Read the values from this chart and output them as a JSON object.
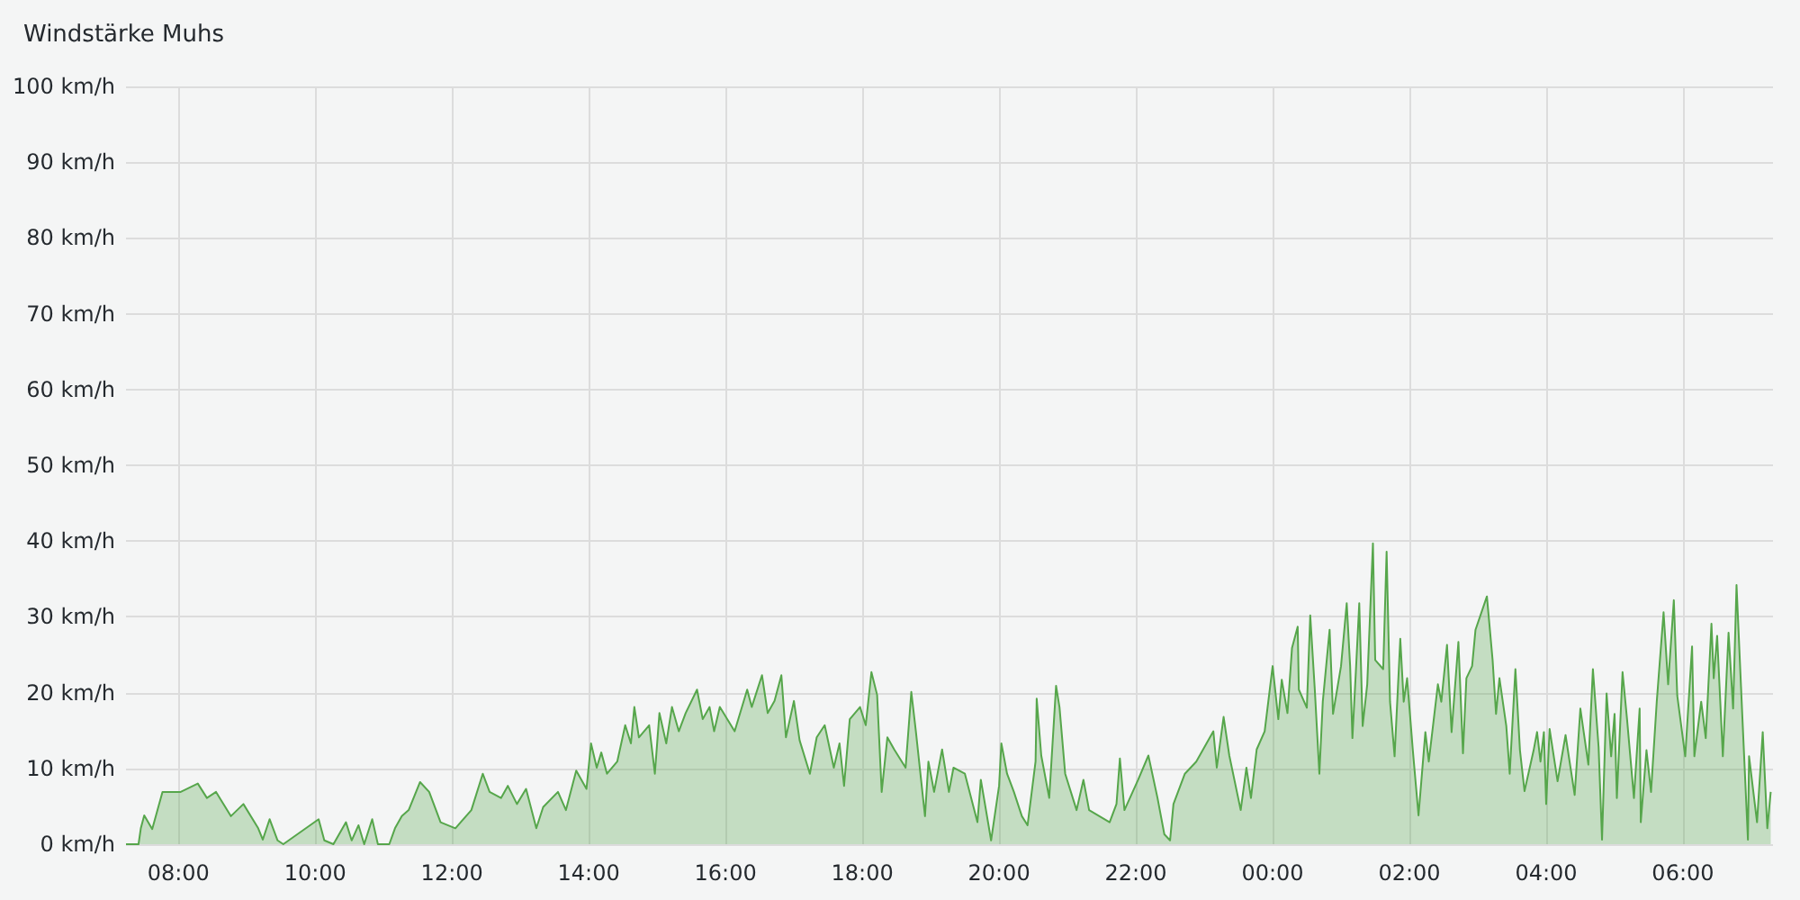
{
  "chart_data": {
    "type": "area",
    "title": "Windstärke Muhs",
    "grid": true,
    "marker": "none",
    "line_style": "solid",
    "xlim": [
      "2000-01-01T07:14",
      "2000-01-02T07:19"
    ],
    "xticks": [
      {
        "value": "2000-01-01T08:00",
        "label": "08:00"
      },
      {
        "value": "2000-01-01T10:00",
        "label": "10:00"
      },
      {
        "value": "2000-01-01T12:00",
        "label": "12:00"
      },
      {
        "value": "2000-01-01T14:00",
        "label": "14:00"
      },
      {
        "value": "2000-01-01T16:00",
        "label": "16:00"
      },
      {
        "value": "2000-01-01T18:00",
        "label": "18:00"
      },
      {
        "value": "2000-01-01T20:00",
        "label": "20:00"
      },
      {
        "value": "2000-01-01T22:00",
        "label": "22:00"
      },
      {
        "value": "2000-01-02T00:00",
        "label": "00:00"
      },
      {
        "value": "2000-01-02T02:00",
        "label": "02:00"
      },
      {
        "value": "2000-01-02T04:00",
        "label": "04:00"
      },
      {
        "value": "2000-01-02T06:00",
        "label": "06:00"
      }
    ],
    "ylim": [
      0,
      100
    ],
    "yticks": [
      {
        "value": 0,
        "label": "0 km/h"
      },
      {
        "value": 10,
        "label": "10 km/h"
      },
      {
        "value": 20,
        "label": "20 km/h"
      },
      {
        "value": 30,
        "label": "30 km/h"
      },
      {
        "value": 40,
        "label": "40 km/h"
      },
      {
        "value": 50,
        "label": "50 km/h"
      },
      {
        "value": 60,
        "label": "60 km/h"
      },
      {
        "value": 70,
        "label": "70 km/h"
      },
      {
        "value": 80,
        "label": "80 km/h"
      },
      {
        "value": 90,
        "label": "90 km/h"
      },
      {
        "value": 100,
        "label": "100 km/h"
      }
    ],
    "series": [
      {
        "color": "#56a64b",
        "x": [
          "2000-01-01T07:14",
          "2000-01-01T07:25",
          "2000-01-01T07:27",
          "2000-01-01T07:30",
          "2000-01-01T07:37",
          "2000-01-01T07:46",
          "2000-01-01T08:02",
          "2000-01-01T08:17",
          "2000-01-01T08:25",
          "2000-01-01T08:33",
          "2000-01-01T08:46",
          "2000-01-01T08:57",
          "2000-01-01T09:10",
          "2000-01-01T09:14",
          "2000-01-01T09:20",
          "2000-01-01T09:27",
          "2000-01-01T09:32",
          "2000-01-01T10:03",
          "2000-01-01T10:08",
          "2000-01-01T10:16",
          "2000-01-01T10:27",
          "2000-01-01T10:32",
          "2000-01-01T10:38",
          "2000-01-01T10:43",
          "2000-01-01T10:50",
          "2000-01-01T10:55",
          "2000-01-01T11:05",
          "2000-01-01T11:10",
          "2000-01-01T11:16",
          "2000-01-01T11:22",
          "2000-01-01T11:32",
          "2000-01-01T11:40",
          "2000-01-01T11:50",
          "2000-01-01T12:03",
          "2000-01-01T12:17",
          "2000-01-01T12:27",
          "2000-01-01T12:33",
          "2000-01-01T12:43",
          "2000-01-01T12:49",
          "2000-01-01T12:57",
          "2000-01-01T13:05",
          "2000-01-01T13:14",
          "2000-01-01T13:20",
          "2000-01-01T13:33",
          "2000-01-01T13:40",
          "2000-01-01T13:49",
          "2000-01-01T13:58",
          "2000-01-01T14:02",
          "2000-01-01T14:07",
          "2000-01-01T14:11",
          "2000-01-01T14:16",
          "2000-01-01T14:25",
          "2000-01-01T14:32",
          "2000-01-01T14:37",
          "2000-01-01T14:40",
          "2000-01-01T14:44",
          "2000-01-01T14:53",
          "2000-01-01T14:58",
          "2000-01-01T15:02",
          "2000-01-01T15:08",
          "2000-01-01T15:13",
          "2000-01-01T15:19",
          "2000-01-01T15:25",
          "2000-01-01T15:35",
          "2000-01-01T15:40",
          "2000-01-01T15:46",
          "2000-01-01T15:50",
          "2000-01-01T15:55",
          "2000-01-01T16:08",
          "2000-01-01T16:19",
          "2000-01-01T16:23",
          "2000-01-01T16:32",
          "2000-01-01T16:37",
          "2000-01-01T16:43",
          "2000-01-01T16:49",
          "2000-01-01T16:53",
          "2000-01-01T17:00",
          "2000-01-01T17:05",
          "2000-01-01T17:14",
          "2000-01-01T17:20",
          "2000-01-01T17:27",
          "2000-01-01T17:35",
          "2000-01-01T17:40",
          "2000-01-01T17:44",
          "2000-01-01T17:49",
          "2000-01-01T17:58",
          "2000-01-01T18:03",
          "2000-01-01T18:08",
          "2000-01-01T18:13",
          "2000-01-01T18:17",
          "2000-01-01T18:22",
          "2000-01-01T18:28",
          "2000-01-01T18:38",
          "2000-01-01T18:43",
          "2000-01-01T18:47",
          "2000-01-01T18:55",
          "2000-01-01T18:58",
          "2000-01-01T19:03",
          "2000-01-01T19:10",
          "2000-01-01T19:16",
          "2000-01-01T19:20",
          "2000-01-01T19:30",
          "2000-01-01T19:41",
          "2000-01-01T19:44",
          "2000-01-01T19:53",
          "2000-01-01T20:00",
          "2000-01-01T20:02",
          "2000-01-01T20:07",
          "2000-01-01T20:13",
          "2000-01-01T20:20",
          "2000-01-01T20:25",
          "2000-01-01T20:32",
          "2000-01-01T20:33",
          "2000-01-01T20:37",
          "2000-01-01T20:44",
          "2000-01-01T20:50",
          "2000-01-01T20:53",
          "2000-01-01T20:58",
          "2000-01-01T21:08",
          "2000-01-01T21:14",
          "2000-01-01T21:19",
          "2000-01-01T21:37",
          "2000-01-01T21:43",
          "2000-01-01T21:46",
          "2000-01-01T21:50",
          "2000-01-01T22:02",
          "2000-01-01T22:11",
          "2000-01-01T22:19",
          "2000-01-01T22:25",
          "2000-01-01T22:30",
          "2000-01-01T22:33",
          "2000-01-01T22:43",
          "2000-01-01T22:53",
          "2000-01-01T23:02",
          "2000-01-01T23:08",
          "2000-01-01T23:11",
          "2000-01-01T23:17",
          "2000-01-01T23:22",
          "2000-01-01T23:32",
          "2000-01-01T23:37",
          "2000-01-01T23:41",
          "2000-01-01T23:46",
          "2000-01-01T23:53",
          "2000-01-02T00:00",
          "2000-01-02T00:05",
          "2000-01-02T00:08",
          "2000-01-02T00:13",
          "2000-01-02T00:17",
          "2000-01-02T00:22",
          "2000-01-02T00:23",
          "2000-01-02T00:30",
          "2000-01-02T00:33",
          "2000-01-02T00:37",
          "2000-01-02T00:41",
          "2000-01-02T00:44",
          "2000-01-02T00:50",
          "2000-01-02T00:53",
          "2000-01-02T01:00",
          "2000-01-02T01:05",
          "2000-01-02T01:08",
          "2000-01-02T01:10",
          "2000-01-02T01:13",
          "2000-01-02T01:16",
          "2000-01-02T01:19",
          "2000-01-02T01:23",
          "2000-01-02T01:28",
          "2000-01-02T01:30",
          "2000-01-02T01:37",
          "2000-01-02T01:40",
          "2000-01-02T01:43",
          "2000-01-02T01:47",
          "2000-01-02T01:52",
          "2000-01-02T01:55",
          "2000-01-02T01:58",
          "2000-01-02T02:03",
          "2000-01-02T02:08",
          "2000-01-02T02:11",
          "2000-01-02T02:14",
          "2000-01-02T02:17",
          "2000-01-02T02:25",
          "2000-01-02T02:28",
          "2000-01-02T02:33",
          "2000-01-02T02:37",
          "2000-01-02T02:43",
          "2000-01-02T02:47",
          "2000-01-02T02:50",
          "2000-01-02T02:55",
          "2000-01-02T02:58",
          "2000-01-02T03:08",
          "2000-01-02T03:13",
          "2000-01-02T03:16",
          "2000-01-02T03:19",
          "2000-01-02T03:25",
          "2000-01-02T03:28",
          "2000-01-02T03:33",
          "2000-01-02T03:37",
          "2000-01-02T03:41",
          "2000-01-02T03:49",
          "2000-01-02T03:52",
          "2000-01-02T03:55",
          "2000-01-02T03:58",
          "2000-01-02T04:00",
          "2000-01-02T04:03",
          "2000-01-02T04:10",
          "2000-01-02T04:17",
          "2000-01-02T04:25",
          "2000-01-02T04:30",
          "2000-01-02T04:37",
          "2000-01-02T04:41",
          "2000-01-02T04:46",
          "2000-01-02T04:49",
          "2000-01-02T04:53",
          "2000-01-02T04:57",
          "2000-01-02T05:00",
          "2000-01-02T05:02",
          "2000-01-02T05:07",
          "2000-01-02T05:11",
          "2000-01-02T05:17",
          "2000-01-02T05:22",
          "2000-01-02T05:23",
          "2000-01-02T05:28",
          "2000-01-02T05:32",
          "2000-01-02T05:37",
          "2000-01-02T05:43",
          "2000-01-02T05:47",
          "2000-01-02T05:52",
          "2000-01-02T05:55",
          "2000-01-02T06:02",
          "2000-01-02T06:08",
          "2000-01-02T06:10",
          "2000-01-02T06:16",
          "2000-01-02T06:20",
          "2000-01-02T06:25",
          "2000-01-02T06:27",
          "2000-01-02T06:30",
          "2000-01-02T06:35",
          "2000-01-02T06:40",
          "2000-01-02T06:44",
          "2000-01-02T06:47",
          "2000-01-02T06:52",
          "2000-01-02T06:57",
          "2000-01-02T06:58",
          "2000-01-02T07:05",
          "2000-01-02T07:10",
          "2000-01-02T07:14",
          "2000-01-02T07:17"
        ],
        "values": [
          0,
          0,
          2.1,
          3.8,
          2.0,
          6.9,
          6.9,
          8.0,
          6.1,
          6.9,
          3.7,
          5.3,
          2.1,
          0.6,
          3.3,
          0.5,
          0,
          3.3,
          0.5,
          0,
          2.9,
          0.5,
          2.5,
          0,
          3.3,
          0,
          0,
          2.1,
          3.7,
          4.5,
          8.2,
          6.9,
          2.9,
          2.1,
          4.5,
          9.3,
          6.9,
          6.1,
          7.7,
          5.3,
          7.3,
          2.1,
          4.9,
          6.9,
          4.5,
          9.7,
          7.3,
          13.3,
          10.1,
          12.1,
          9.3,
          10.9,
          15.7,
          13.3,
          18.1,
          14.1,
          15.7,
          9.3,
          17.3,
          13.3,
          18.1,
          14.9,
          17.3,
          20.4,
          16.5,
          18.1,
          14.9,
          18.1,
          14.9,
          20.4,
          18.1,
          22.3,
          17.3,
          18.9,
          22.3,
          14.1,
          18.9,
          13.7,
          9.3,
          14.1,
          15.7,
          10.1,
          13.3,
          7.7,
          16.5,
          18.1,
          15.7,
          22.7,
          19.7,
          6.9,
          14.1,
          12.5,
          10.1,
          20.1,
          14.9,
          3.7,
          10.9,
          6.9,
          12.5,
          6.9,
          10.1,
          9.3,
          2.9,
          8.5,
          0.5,
          7.7,
          13.3,
          9.3,
          6.9,
          3.7,
          2.5,
          10.9,
          19.2,
          11.7,
          6.1,
          20.9,
          18.1,
          9.3,
          4.5,
          8.5,
          4.5,
          2.9,
          5.3,
          11.3,
          4.5,
          8.5,
          11.7,
          6.1,
          1.3,
          0.5,
          5.3,
          9.3,
          10.9,
          13.3,
          14.9,
          10.1,
          16.8,
          11.7,
          4.5,
          10.1,
          6.1,
          12.5,
          14.9,
          23.5,
          16.5,
          21.7,
          17.3,
          25.9,
          28.7,
          20.4,
          18.0,
          30.2,
          20.4,
          9.3,
          18.8,
          28.3,
          17.2,
          23.5,
          31.8,
          23.5,
          14.0,
          22.7,
          31.8,
          15.6,
          21.1,
          39.7,
          24.3,
          23.1,
          38.6,
          18.8,
          11.6,
          27.1,
          18.8,
          21.9,
          12.4,
          3.8,
          9.3,
          14.8,
          10.9,
          21.1,
          18.8,
          26.3,
          14.8,
          26.7,
          12.0,
          21.9,
          23.5,
          28.3,
          32.7,
          24.3,
          17.2,
          21.9,
          15.6,
          9.3,
          23.1,
          12.4,
          7.0,
          12.4,
          14.8,
          10.9,
          14.8,
          5.3,
          15.2,
          8.3,
          14.4,
          6.5,
          17.9,
          10.5,
          23.1,
          12.8,
          0.6,
          19.9,
          11.6,
          17.2,
          6.1,
          22.7,
          16.4,
          6.1,
          17.9,
          2.9,
          12.4,
          6.9,
          18.8,
          30.6,
          21.1,
          32.2,
          19.6,
          11.6,
          26.1,
          11.6,
          18.8,
          14.0,
          29.1,
          21.9,
          27.5,
          11.6,
          27.9,
          17.9,
          34.2,
          17.2,
          0.6,
          11.6,
          2.9,
          14.8,
          2.1,
          6.9
        ]
      }
    ]
  }
}
